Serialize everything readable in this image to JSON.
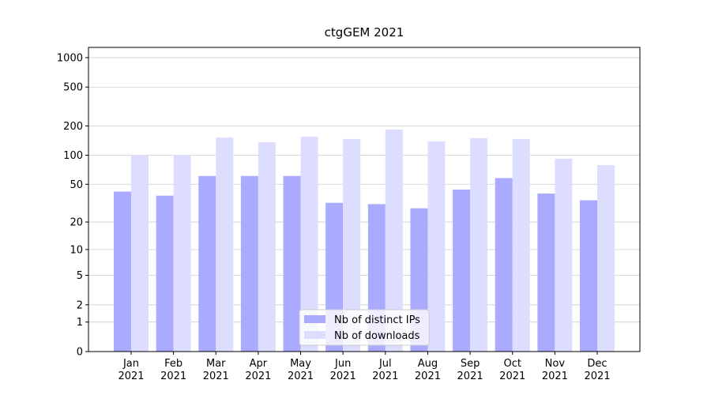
{
  "chart_data": {
    "type": "bar",
    "title": "ctgGEM 2021",
    "categories": [
      "Jan\n2021",
      "Feb\n2021",
      "Mar\n2021",
      "Apr\n2021",
      "May\n2021",
      "Jun\n2021",
      "Jul\n2021",
      "Aug\n2021",
      "Sep\n2021",
      "Oct\n2021",
      "Nov\n2021",
      "Dec\n2021"
    ],
    "series": [
      {
        "name": "Nb of distinct IPs",
        "color": "#aaaaff",
        "values": [
          42,
          38,
          61,
          61,
          61,
          32,
          31,
          28,
          44,
          58,
          40,
          34
        ]
      },
      {
        "name": "Nb of downloads",
        "color": "#ddddff",
        "values": [
          100,
          100,
          152,
          136,
          155,
          147,
          184,
          139,
          150,
          147,
          92,
          79
        ]
      }
    ],
    "yscale": "log1p",
    "ylim": [
      0,
      1272
    ],
    "yticks": [
      0,
      1,
      2,
      5,
      10,
      20,
      50,
      100,
      200,
      500,
      1000
    ],
    "grid": true,
    "legend": "lower center"
  }
}
